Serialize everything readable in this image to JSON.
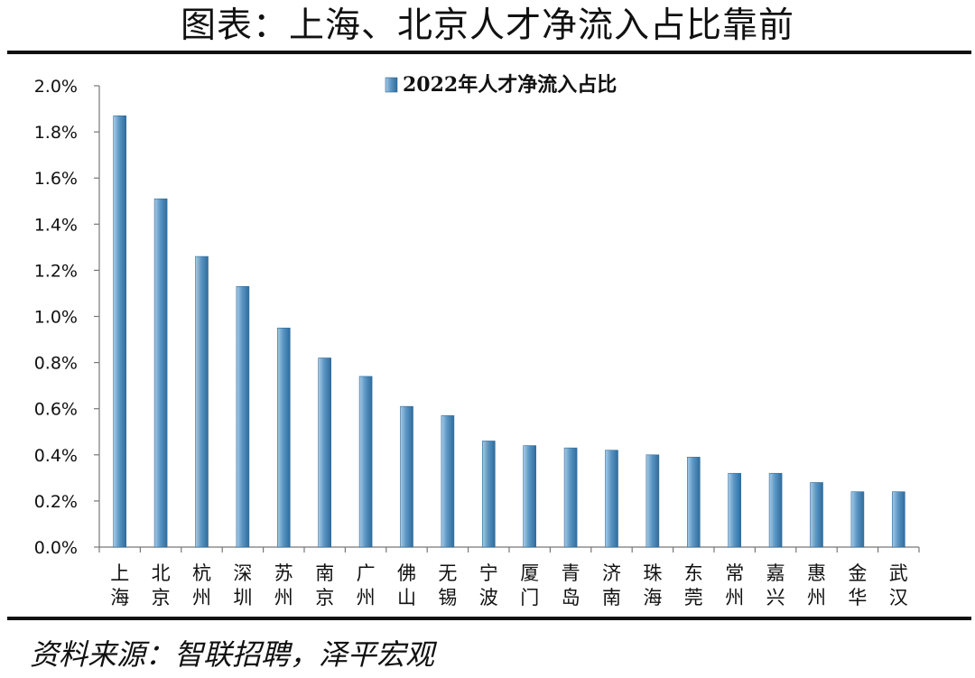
{
  "page": {
    "title": "图表：上海、北京人才净流入占比靠前",
    "source": "资料来源：智联招聘，泽平宏观"
  },
  "chart_data": {
    "type": "bar",
    "categories": [
      "上海",
      "北京",
      "杭州",
      "深圳",
      "苏州",
      "南京",
      "广州",
      "佛山",
      "无锡",
      "宁波",
      "厦门",
      "青岛",
      "济南",
      "珠海",
      "东莞",
      "常州",
      "嘉兴",
      "惠州",
      "金华",
      "武汉"
    ],
    "series": [
      {
        "name": "2022年人才净流入占比",
        "values": [
          1.87,
          1.51,
          1.26,
          1.13,
          0.95,
          0.82,
          0.74,
          0.61,
          0.57,
          0.46,
          0.44,
          0.43,
          0.42,
          0.4,
          0.39,
          0.32,
          0.32,
          0.28,
          0.24,
          0.24
        ]
      }
    ],
    "ylim": [
      0,
      2.0
    ],
    "yticks": [
      "0.0%",
      "0.2%",
      "0.4%",
      "0.6%",
      "0.8%",
      "1.0%",
      "1.2%",
      "1.4%",
      "1.6%",
      "1.8%",
      "2.0%"
    ],
    "ylabel": "",
    "xlabel": "",
    "grid": false,
    "legend_position": "top-center",
    "bar_color": "#5b96c4",
    "bar_edge_color": "#2f6c9c"
  }
}
